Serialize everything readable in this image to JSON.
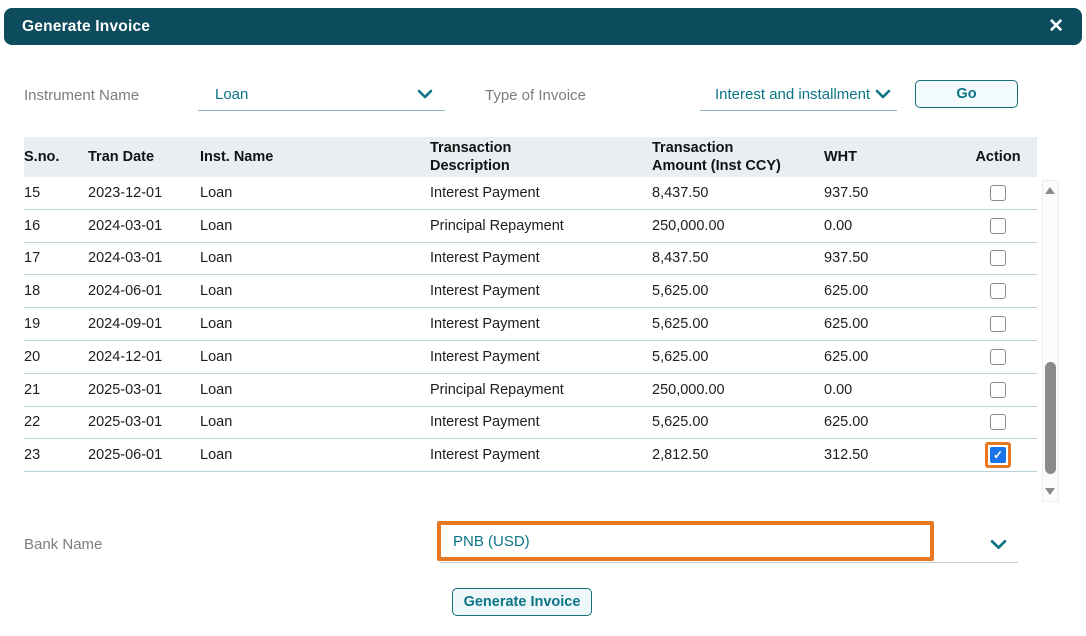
{
  "dialog": {
    "title": "Generate Invoice"
  },
  "icons": {
    "close": "✕",
    "check": "✓"
  },
  "filters": {
    "instrument_name": {
      "label": "Instrument Name",
      "value": "Loan"
    },
    "type_of_invoice": {
      "label": "Type of Invoice",
      "value": "Interest and installment"
    },
    "go_label": "Go"
  },
  "table": {
    "columns": [
      "S.no.",
      "Tran Date",
      "Inst. Name",
      "Transaction Description",
      "Transaction Amount (Inst CCY)",
      "WHT",
      "Action"
    ],
    "rows": [
      {
        "sno": "15",
        "tran_date": "2023-12-01",
        "inst_name": "Loan",
        "description": "Interest Payment",
        "amount": "8,437.50",
        "wht": "937.50",
        "checked": false,
        "highlighted": false
      },
      {
        "sno": "16",
        "tran_date": "2024-03-01",
        "inst_name": "Loan",
        "description": "Principal Repayment",
        "amount": "250,000.00",
        "wht": "0.00",
        "checked": false,
        "highlighted": false
      },
      {
        "sno": "17",
        "tran_date": "2024-03-01",
        "inst_name": "Loan",
        "description": "Interest Payment",
        "amount": "8,437.50",
        "wht": "937.50",
        "checked": false,
        "highlighted": false
      },
      {
        "sno": "18",
        "tran_date": "2024-06-01",
        "inst_name": "Loan",
        "description": "Interest Payment",
        "amount": "5,625.00",
        "wht": "625.00",
        "checked": false,
        "highlighted": false
      },
      {
        "sno": "19",
        "tran_date": "2024-09-01",
        "inst_name": "Loan",
        "description": "Interest Payment",
        "amount": "5,625.00",
        "wht": "625.00",
        "checked": false,
        "highlighted": false
      },
      {
        "sno": "20",
        "tran_date": "2024-12-01",
        "inst_name": "Loan",
        "description": "Interest Payment",
        "amount": "5,625.00",
        "wht": "625.00",
        "checked": false,
        "highlighted": false
      },
      {
        "sno": "21",
        "tran_date": "2025-03-01",
        "inst_name": "Loan",
        "description": "Principal Repayment",
        "amount": "250,000.00",
        "wht": "0.00",
        "checked": false,
        "highlighted": false
      },
      {
        "sno": "22",
        "tran_date": "2025-03-01",
        "inst_name": "Loan",
        "description": "Interest Payment",
        "amount": "5,625.00",
        "wht": "625.00",
        "checked": false,
        "highlighted": false
      },
      {
        "sno": "23",
        "tran_date": "2025-06-01",
        "inst_name": "Loan",
        "description": "Interest Payment",
        "amount": "2,812.50",
        "wht": "312.50",
        "checked": true,
        "highlighted": true
      }
    ]
  },
  "bank": {
    "label": "Bank Name",
    "value": "PNB (USD)",
    "highlighted": true
  },
  "actions": {
    "generate_invoice_label": "Generate Invoice"
  },
  "colors": {
    "header_teal": "#0d4c5d",
    "accent_teal": "#0b7486",
    "highlight_orange": "#e87722",
    "checkbox_blue": "#1a73e8",
    "table_header_bg": "#e9eef2",
    "row_border": "#b9d2da"
  }
}
